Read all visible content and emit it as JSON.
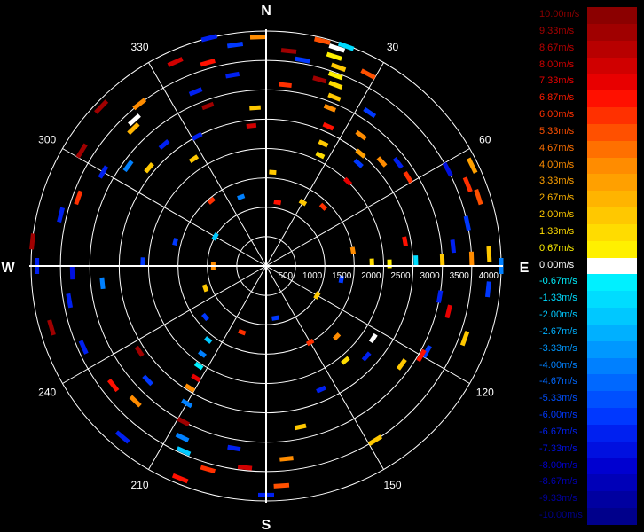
{
  "chart_data": {
    "type": "polar-radar-velocity",
    "cardinal_labels": {
      "north": "N",
      "east": "E",
      "south": "S",
      "west": "W"
    },
    "angle_labels": [
      {
        "deg": 30,
        "label": "30"
      },
      {
        "deg": 60,
        "label": "60"
      },
      {
        "deg": 120,
        "label": "120"
      },
      {
        "deg": 150,
        "label": "150"
      },
      {
        "deg": 210,
        "label": "210"
      },
      {
        "deg": 240,
        "label": "240"
      },
      {
        "deg": 300,
        "label": "300"
      },
      {
        "deg": 330,
        "label": "330"
      }
    ],
    "range_max": 4000,
    "range_rings": [
      500,
      1000,
      1500,
      2000,
      2500,
      3000,
      3500,
      4000
    ],
    "range_labels": [
      "500",
      "1000",
      "1500",
      "2000",
      "2500",
      "3000",
      "3500",
      "4000"
    ],
    "legend": [
      {
        "label": "10.00m/s",
        "color": "#8b0000",
        "text_color": "#8b0000"
      },
      {
        "label": "9.33m/s",
        "color": "#a00000",
        "text_color": "#a50000"
      },
      {
        "label": "8.67m/s",
        "color": "#b80000",
        "text_color": "#bb0000"
      },
      {
        "label": "8.00m/s",
        "color": "#d00000",
        "text_color": "#d00000"
      },
      {
        "label": "7.33m/s",
        "color": "#e80000",
        "text_color": "#e80000"
      },
      {
        "label": "6.87m/s",
        "color": "#ff1000",
        "text_color": "#ff1a00"
      },
      {
        "label": "6.00m/s",
        "color": "#ff3000",
        "text_color": "#ff3000"
      },
      {
        "label": "5.33m/s",
        "color": "#ff5000",
        "text_color": "#ff5000"
      },
      {
        "label": "4.67m/s",
        "color": "#ff7000",
        "text_color": "#ff7000"
      },
      {
        "label": "4.00m/s",
        "color": "#ff8c00",
        "text_color": "#ff8c00"
      },
      {
        "label": "3.33m/s",
        "color": "#ffa000",
        "text_color": "#ffa000"
      },
      {
        "label": "2.67m/s",
        "color": "#ffb400",
        "text_color": "#ffb400"
      },
      {
        "label": "2.00m/s",
        "color": "#ffc800",
        "text_color": "#ffc800"
      },
      {
        "label": "1.33m/s",
        "color": "#ffdc00",
        "text_color": "#ffdc00"
      },
      {
        "label": "0.67m/s",
        "color": "#fff000",
        "text_color": "#fff000"
      },
      {
        "label": "0.00m/s",
        "color": "#ffffff",
        "text_color": "#ffffff"
      },
      {
        "label": "-0.67m/s",
        "color": "#00f0ff",
        "text_color": "#00f0ff"
      },
      {
        "label": "-1.33m/s",
        "color": "#00dcff",
        "text_color": "#00dcff"
      },
      {
        "label": "-2.00m/s",
        "color": "#00c8ff",
        "text_color": "#00c8ff"
      },
      {
        "label": "-2.67m/s",
        "color": "#00b0ff",
        "text_color": "#00b0ff"
      },
      {
        "label": "-3.33m/s",
        "color": "#0098ff",
        "text_color": "#0098ff"
      },
      {
        "label": "-4.00m/s",
        "color": "#0080ff",
        "text_color": "#0080ff"
      },
      {
        "label": "-4.67m/s",
        "color": "#0068ff",
        "text_color": "#0068ff"
      },
      {
        "label": "-5.33m/s",
        "color": "#0050ff",
        "text_color": "#0050ff"
      },
      {
        "label": "-6.00m/s",
        "color": "#0038ff",
        "text_color": "#0038ff"
      },
      {
        "label": "-6.67m/s",
        "color": "#0020f0",
        "text_color": "#0020f0"
      },
      {
        "label": "-7.33m/s",
        "color": "#0010e0",
        "text_color": "#0010e0"
      },
      {
        "label": "-8.00m/s",
        "color": "#0000d0",
        "text_color": "#0000d0"
      },
      {
        "label": "-8.67m/s",
        "color": "#0000b8",
        "text_color": "#0000b8"
      },
      {
        "label": "-9.33m/s",
        "color": "#0000a0",
        "text_color": "#0000a0"
      },
      {
        "label": "-10.00m/s",
        "color": "#00008b",
        "text_color": "#00008b"
      }
    ],
    "velocity_bins": [
      {
        "az": 6,
        "range": 3680,
        "v": 9.3
      },
      {
        "az": 6,
        "range": 3100,
        "v": 6.0
      },
      {
        "az": 10,
        "range": 3560,
        "v": -6.0
      },
      {
        "az": 14,
        "range": 3950,
        "v": 5.3
      },
      {
        "az": 16,
        "range": 3300,
        "v": 9.3
      },
      {
        "az": 18,
        "range": 3900,
        "v": 0.0
      },
      {
        "az": 18,
        "range": 3750,
        "v": 0.67
      },
      {
        "az": 20,
        "range": 3600,
        "v": 2.0
      },
      {
        "az": 20,
        "range": 3450,
        "v": 0.67
      },
      {
        "az": 21,
        "range": 3300,
        "v": 1.33
      },
      {
        "az": 22,
        "range": 3100,
        "v": 2.0
      },
      {
        "az": 22,
        "range": 2900,
        "v": 4.0
      },
      {
        "az": 24,
        "range": 2600,
        "v": 6.9
      },
      {
        "az": 25,
        "range": 2300,
        "v": 2.0
      },
      {
        "az": 26,
        "range": 2100,
        "v": 1.33
      },
      {
        "az": 20,
        "range": 3980,
        "v": -1.33
      },
      {
        "az": 28,
        "range": 3700,
        "v": 5.3
      },
      {
        "az": 34,
        "range": 3150,
        "v": -6.0
      },
      {
        "az": 36,
        "range": 2750,
        "v": 4.0
      },
      {
        "az": 40,
        "range": 2500,
        "v": 3.3
      },
      {
        "az": 42,
        "range": 2350,
        "v": -6.0
      },
      {
        "az": 44,
        "range": 2000,
        "v": 7.3
      },
      {
        "az": 48,
        "range": 2650,
        "v": 4.0
      },
      {
        "az": 52,
        "range": 2850,
        "v": -6.7
      },
      {
        "az": 58,
        "range": 2850,
        "v": 6.0
      },
      {
        "az": 62,
        "range": 3500,
        "v": -7.3
      },
      {
        "az": 64,
        "range": 3900,
        "v": 3.3
      },
      {
        "az": 68,
        "range": 3700,
        "v": 6.0
      },
      {
        "az": 72,
        "range": 3800,
        "v": 5.3
      },
      {
        "az": 78,
        "range": 3500,
        "v": -6.0
      },
      {
        "az": 80,
        "range": 2400,
        "v": 6.9
      },
      {
        "az": 84,
        "range": 3200,
        "v": -6.7
      },
      {
        "az": 87,
        "range": 3800,
        "v": 2.0
      },
      {
        "az": 88,
        "range": 3500,
        "v": 4.0
      },
      {
        "az": 88,
        "range": 3000,
        "v": 2.0
      },
      {
        "az": 88,
        "range": 2550,
        "v": -1.33
      },
      {
        "az": 89,
        "range": 2100,
        "v": 0.67
      },
      {
        "az": 88,
        "range": 1800,
        "v": 1.33
      },
      {
        "az": 90,
        "range": 4000,
        "v": -4.0
      },
      {
        "az": 96,
        "range": 3800,
        "v": -6.0
      },
      {
        "az": 100,
        "range": 3000,
        "v": -6.7
      },
      {
        "az": 104,
        "range": 3200,
        "v": 7.3
      },
      {
        "az": 110,
        "range": 3600,
        "v": 2.0
      },
      {
        "az": 118,
        "range": 3100,
        "v": -6.0
      },
      {
        "az": 120,
        "range": 3050,
        "v": 6.9
      },
      {
        "az": 124,
        "range": 2200,
        "v": 0.0
      },
      {
        "az": 126,
        "range": 2850,
        "v": 2.0
      },
      {
        "az": 132,
        "range": 2300,
        "v": -6.7
      },
      {
        "az": 135,
        "range": 1700,
        "v": 4.0
      },
      {
        "az": 140,
        "range": 2100,
        "v": 1.33
      },
      {
        "az": 148,
        "range": 3500,
        "v": 2.0
      },
      {
        "az": 156,
        "range": 2300,
        "v": -6.7
      },
      {
        "az": 168,
        "range": 2800,
        "v": 2.0
      },
      {
        "az": 174,
        "range": 3300,
        "v": 4.0
      },
      {
        "az": 176,
        "range": 3750,
        "v": 5.3
      },
      {
        "az": 180,
        "range": 3900,
        "v": -6.7
      },
      {
        "az": 186,
        "range": 3450,
        "v": 8.0
      },
      {
        "az": 190,
        "range": 3150,
        "v": -6.7
      },
      {
        "az": 196,
        "range": 3600,
        "v": 6.0
      },
      {
        "az": 202,
        "range": 3900,
        "v": 6.9
      },
      {
        "az": 204,
        "range": 3450,
        "v": -2.0
      },
      {
        "az": 206,
        "range": 3250,
        "v": -4.0
      },
      {
        "az": 208,
        "range": 3000,
        "v": 9.3
      },
      {
        "az": 210,
        "range": 2700,
        "v": -4.0
      },
      {
        "az": 212,
        "range": 2450,
        "v": 4.0
      },
      {
        "az": 212,
        "range": 2250,
        "v": 7.3
      },
      {
        "az": 214,
        "range": 2050,
        "v": -0.67
      },
      {
        "az": 216,
        "range": 1850,
        "v": -4.0
      },
      {
        "az": 218,
        "range": 1600,
        "v": -2.0
      },
      {
        "az": 220,
        "range": 3800,
        "v": -6.7
      },
      {
        "az": 224,
        "range": 3200,
        "v": 4.0
      },
      {
        "az": 226,
        "range": 2800,
        "v": -6.0
      },
      {
        "az": 232,
        "range": 3300,
        "v": 6.9
      },
      {
        "az": 236,
        "range": 2600,
        "v": 9.3
      },
      {
        "az": 246,
        "range": 3400,
        "v": -6.7
      },
      {
        "az": 254,
        "range": 3800,
        "v": 9.3
      },
      {
        "az": 260,
        "range": 3400,
        "v": -6.7
      },
      {
        "az": 264,
        "range": 2800,
        "v": -4.0
      },
      {
        "az": 268,
        "range": 3300,
        "v": -7.3
      },
      {
        "az": 270,
        "range": 3900,
        "v": -6.7
      },
      {
        "az": 272,
        "range": 2100,
        "v": -6.0
      },
      {
        "az": 276,
        "range": 4000,
        "v": 9.3
      },
      {
        "az": 284,
        "range": 3600,
        "v": -6.7
      },
      {
        "az": 290,
        "range": 3400,
        "v": 6.0
      },
      {
        "az": 300,
        "range": 3200,
        "v": -6.7
      },
      {
        "az": 302,
        "range": 3700,
        "v": 9.3
      },
      {
        "az": 306,
        "range": 2900,
        "v": -4.0
      },
      {
        "az": 310,
        "range": 2600,
        "v": 2.0
      },
      {
        "az": 314,
        "range": 3900,
        "v": 9.3
      },
      {
        "az": 316,
        "range": 3250,
        "v": 2.67
      },
      {
        "az": 318,
        "range": 3350,
        "v": 0.0
      },
      {
        "az": 320,
        "range": 2700,
        "v": -6.7
      },
      {
        "az": 322,
        "range": 3500,
        "v": 4.0
      },
      {
        "az": 326,
        "range": 2200,
        "v": 2.0
      },
      {
        "az": 332,
        "range": 2500,
        "v": -6.7
      },
      {
        "az": 336,
        "range": 3800,
        "v": 8.0
      },
      {
        "az": 338,
        "range": 3200,
        "v": -6.7
      },
      {
        "az": 340,
        "range": 2900,
        "v": 9.3
      },
      {
        "az": 344,
        "range": 3600,
        "v": 6.9
      },
      {
        "az": 346,
        "range": 4000,
        "v": -6.7
      },
      {
        "az": 350,
        "range": 3300,
        "v": -6.7
      },
      {
        "az": 352,
        "range": 3800,
        "v": -6.0
      },
      {
        "az": 354,
        "range": 2400,
        "v": 8.0
      },
      {
        "az": 356,
        "range": 2700,
        "v": 2.0
      },
      {
        "az": 358,
        "range": 3900,
        "v": 4.0
      },
      {
        "az": 4,
        "range": 1600,
        "v": 2.0
      },
      {
        "az": 44,
        "range": 1400,
        "v": 6.0
      },
      {
        "az": 80,
        "range": 1500,
        "v": 4.0
      },
      {
        "az": 100,
        "range": 1300,
        "v": -6.0
      },
      {
        "az": 150,
        "range": 1500,
        "v": 6.0
      },
      {
        "az": 200,
        "range": 1200,
        "v": 6.0
      },
      {
        "az": 230,
        "range": 1350,
        "v": -6.0
      },
      {
        "az": 250,
        "range": 1100,
        "v": 2.0
      },
      {
        "az": 285,
        "range": 1600,
        "v": -6.0
      },
      {
        "az": 320,
        "range": 1450,
        "v": 6.0
      },
      {
        "az": 340,
        "range": 1250,
        "v": -4.0
      },
      {
        "az": 10,
        "range": 1100,
        "v": 6.9
      },
      {
        "az": 30,
        "range": 1250,
        "v": 2.0
      },
      {
        "az": 120,
        "range": 1000,
        "v": 2.0
      },
      {
        "az": 170,
        "range": 900,
        "v": -6.0
      },
      {
        "az": 270,
        "range": 900,
        "v": 4.0
      },
      {
        "az": 300,
        "range": 1000,
        "v": -2.0
      }
    ]
  }
}
